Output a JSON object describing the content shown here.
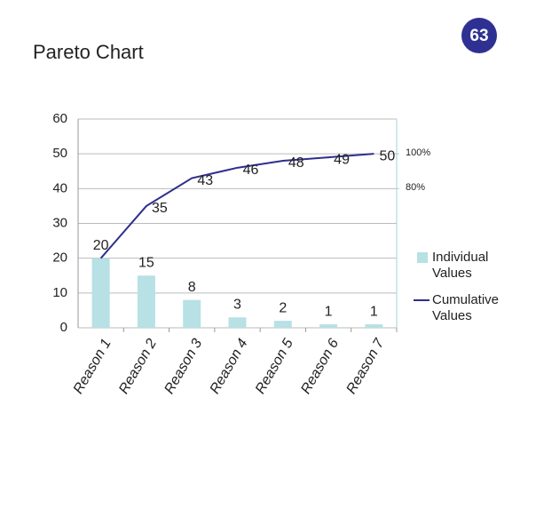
{
  "page_number": 63,
  "chart_data": {
    "type": "pareto",
    "title": "Pareto Chart",
    "categories": [
      "Reason 1",
      "Reason 2",
      "Reason 3",
      "Reason 4",
      "Reason 5",
      "Reason 6",
      "Reason 7"
    ],
    "series": [
      {
        "name": "Individual Values",
        "type": "bar",
        "color": "#b7e1e4",
        "values": [
          20,
          15,
          8,
          3,
          2,
          1,
          1
        ]
      },
      {
        "name": "Cumulative Values",
        "type": "line",
        "color": "#2e2e8f",
        "values": [
          20,
          35,
          43,
          46,
          48,
          49,
          50
        ]
      }
    ],
    "ylim": [
      0,
      60
    ],
    "yticks": [
      0,
      10,
      20,
      30,
      40,
      50,
      60
    ],
    "y2lim": [
      0,
      120
    ],
    "y2ticks": [
      {
        "value": 80,
        "label": "80%"
      },
      {
        "value": 100,
        "label": "100%"
      }
    ],
    "grid": true,
    "legend": "right"
  }
}
